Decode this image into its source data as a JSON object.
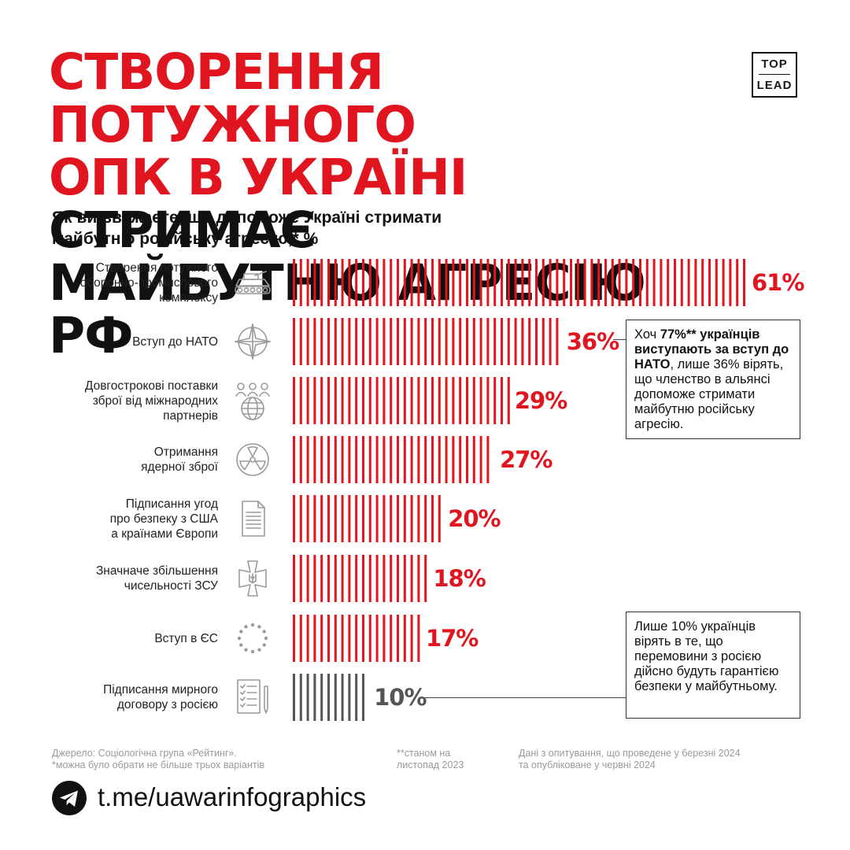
{
  "title": {
    "line1_red": "СТВОРЕННЯ ПОТУЖНОГО",
    "line2_red": "ОПК В УКРАЇНІ",
    "line2_black": " СТРИМАЄ",
    "line3_black": "МАЙБУТНЮ АГРЕСІЮ РФ"
  },
  "logo": {
    "line1": "TOP",
    "line2": "LEAD"
  },
  "question": {
    "line1": "Як ви вважаєте, що допоможе Україні стримати",
    "line2": "майбутню російську агресію,* %"
  },
  "chart_data": {
    "type": "bar",
    "orientation": "horizontal",
    "categories": [
      "Створення потужного оборонно-промислового комплексу",
      "Вступ до НАТО",
      "Довгострокові поставки зброї від міжнародних партнерів",
      "Отримання ядерної зброї",
      "Підписання угод про безпеку з США а країнами Європи",
      "Значначе збільшення чисельності ЗСУ",
      "Вступ в ЄС",
      "Підписання мирного договору з росією"
    ],
    "values": [
      61,
      36,
      29,
      27,
      20,
      18,
      17,
      10
    ],
    "value_labels": [
      "61%",
      "36%",
      "29%",
      "27%",
      "20%",
      "18%",
      "17%",
      "10%"
    ],
    "label_lines": [
      [
        "Створення потужного",
        "оборонно-промислового",
        "комплексу"
      ],
      [
        "Вступ до НАТО"
      ],
      [
        "Довгострокові поставки",
        "зброї від міжнародних",
        "партнерів"
      ],
      [
        "Отримання",
        "ядерної зброї"
      ],
      [
        "Підписання угод",
        "про безпеку з США",
        "а країнами Європи"
      ],
      [
        "Значначе збільшення",
        "чисельності ЗСУ"
      ],
      [
        "Вступ в ЄС"
      ],
      [
        "Підписання мирного",
        "договору з росією"
      ]
    ],
    "icons": [
      "tank-icon",
      "nato-compass-icon",
      "partners-globe-icon",
      "radiation-icon",
      "document-icon",
      "army-cross-icon",
      "eu-stars-icon",
      "treaty-icon"
    ],
    "bar_colors": [
      "#e0151f",
      "#e0151f",
      "#e0151f",
      "#e0151f",
      "#e0151f",
      "#e0151f",
      "#e0151f",
      "#555555"
    ],
    "xlim": [
      0,
      61
    ],
    "style": "striped-bars"
  },
  "notes": {
    "nato": {
      "p1": "Хоч ",
      "b1": "77%** українців виступають за вступ до НАТО",
      "p2": ", лише 36% вірять, що членство в альянсі допоможе стримати майбутню російську агресію."
    },
    "peace": {
      "text": "Лише 10% українців вірять в те, що перемовини з росією дійсно будуть гарантією безпеки у майбутньому."
    }
  },
  "footer": {
    "source_line1": "Джерело: Соціологічна група «Рейтинг».",
    "source_line2": "*можна було обрати не більше трьох варіантів",
    "asof_line1": "**станом на",
    "asof_line2": "листопад 2023",
    "survey_line1": "Дані з опитування, що проведене у березні 2024",
    "survey_line2": "та опубліковане у червні 2024"
  },
  "telegram": {
    "link": "t.me/uawarinfographics"
  },
  "colors": {
    "accent": "#e0151f",
    "dark": "#111111",
    "gray_bar": "#555555",
    "footer_text": "#9a9a9a"
  }
}
